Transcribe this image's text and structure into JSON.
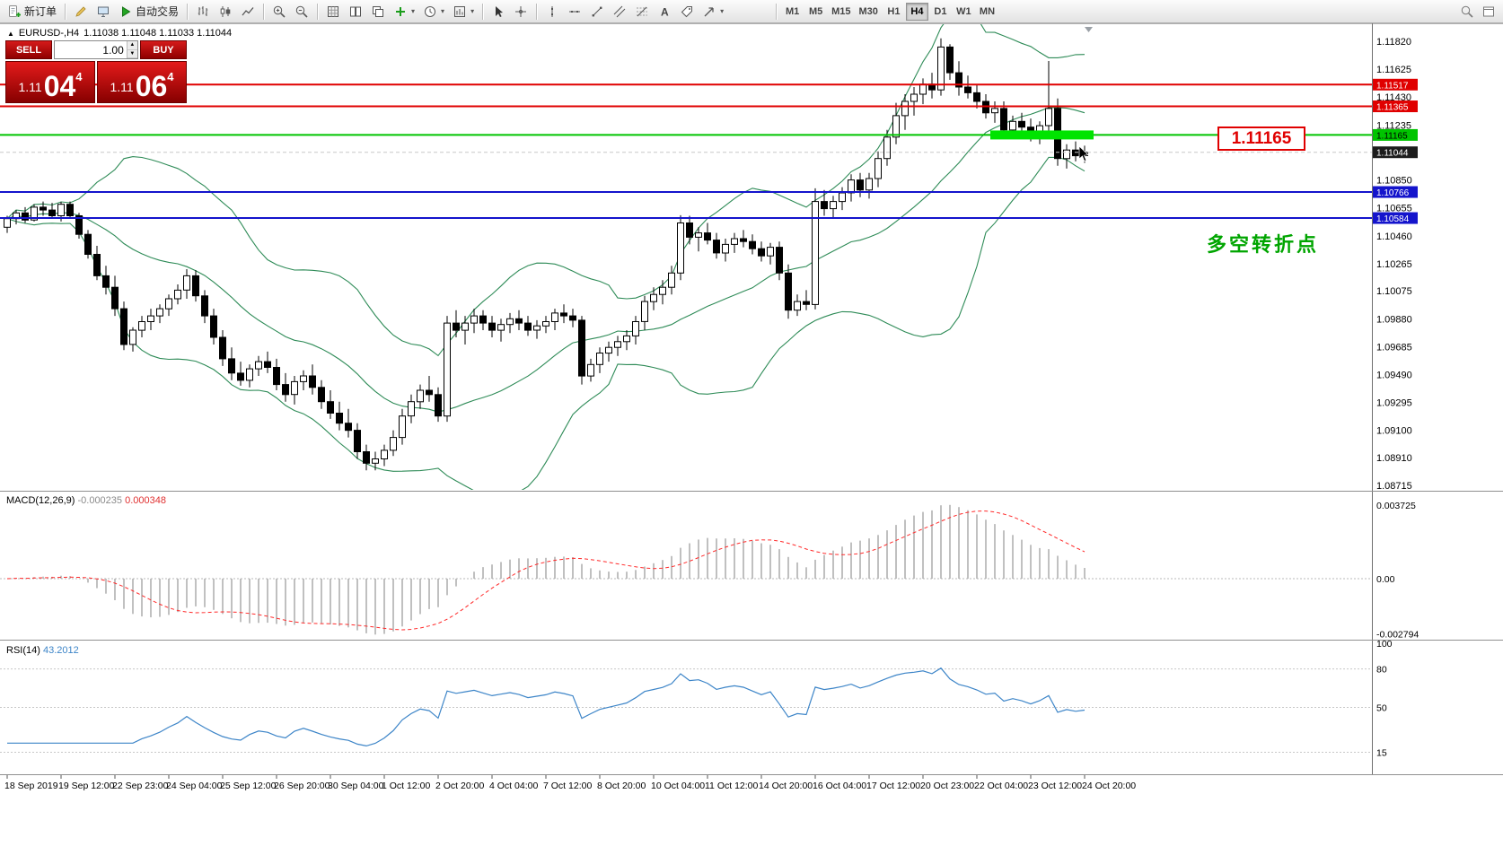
{
  "toolbar": {
    "new_order_label": "新订单",
    "autotrading_label": "自动交易",
    "timeframes": [
      "M1",
      "M5",
      "M15",
      "M30",
      "H1",
      "H4",
      "D1",
      "W1",
      "MN"
    ],
    "active_timeframe": "H4",
    "icons": [
      "new-order-icon",
      "metaeditor-icon",
      "terminal-icon",
      "autotrading-play-icon",
      "bar-chart-icon",
      "candlestick-chart-icon",
      "line-chart-icon",
      "zoom-in-icon",
      "zoom-out-icon",
      "grid-icon",
      "tile-windows-icon",
      "cascade-windows-icon",
      "add-indicator-icon",
      "periods-clock-icon",
      "chart-template-icon",
      "cursor-icon",
      "crosshair-icon",
      "vertical-line-icon",
      "horizontal-line-icon",
      "trendline-icon",
      "channel-icon",
      "fibonacci-icon",
      "text-icon",
      "text-label-icon",
      "arrow-tool-icon",
      "search-icon",
      "window-icon"
    ]
  },
  "chart": {
    "symbol_period": "EURUSD-,H4",
    "ohlc": "1.11038 1.11048 1.11033 1.11044",
    "one_click": {
      "sell_label": "SELL",
      "buy_label": "BUY",
      "volume": "1.00",
      "sell_small": "1.11",
      "sell_big": "04",
      "sell_sup": "4",
      "buy_small": "1.11",
      "buy_big": "06",
      "buy_sup": "4"
    },
    "annotation_price": "1.11165",
    "annotation_cn": "多空转折点",
    "hlines": [
      {
        "price": 1.11517,
        "label": "1.11517",
        "color": "#e00000",
        "text_color": "#ffffff"
      },
      {
        "price": 1.11365,
        "label": "1.11365",
        "color": "#e00000",
        "text_color": "#ffffff"
      },
      {
        "price": 1.11165,
        "label": "1.11165",
        "color": "#00c400",
        "text_color": "#000000"
      },
      {
        "price": 1.10766,
        "label": "1.10766",
        "color": "#1414cc",
        "text_color": "#ffffff"
      },
      {
        "price": 1.10584,
        "label": "1.10584",
        "color": "#1414cc",
        "text_color": "#ffffff"
      }
    ],
    "current_price": {
      "value": 1.11044,
      "label": "1.11044",
      "color": "#1c1c1c"
    },
    "zone": {
      "from": 110,
      "to": 120,
      "price": 1.11165,
      "color": "#00e400"
    },
    "axis_prices": [
      1.1182,
      1.11625,
      1.1143,
      1.11235,
      1.1104,
      1.1085,
      1.10655,
      1.1046,
      1.10265,
      1.10075,
      1.0988,
      1.09685,
      1.0949,
      1.09295,
      1.091,
      1.0891,
      1.08715
    ]
  },
  "macd": {
    "title": "MACD(12,26,9)",
    "value_main": "-0.000235",
    "value_signal": "0.000348",
    "axis": [
      {
        "v": 0.003725,
        "label": "0.003725"
      },
      {
        "v": 0,
        "label": "0.00"
      },
      {
        "v": -0.002794,
        "label": "-0.002794"
      }
    ],
    "params": [
      12,
      26,
      9
    ]
  },
  "rsi": {
    "title": "RSI(14)",
    "value": "43.2012",
    "period": 14,
    "levels": [
      80,
      50,
      15
    ],
    "axis": [
      100,
      80,
      50,
      15
    ]
  },
  "time_axis": [
    "18 Sep 2019",
    "19 Sep 12:00",
    "22 Sep 23:00",
    "24 Sep 04:00",
    "25 Sep 12:00",
    "26 Sep 20:00",
    "30 Sep 04:00",
    "1 Oct 12:00",
    "2 Oct 20:00",
    "4 Oct 04:00",
    "7 Oct 12:00",
    "8 Oct 20:00",
    "10 Oct 04:00",
    "11 Oct 12:00",
    "14 Oct 20:00",
    "16 Oct 04:00",
    "17 Oct 12:00",
    "20 Oct 23:00",
    "22 Oct 04:00",
    "23 Oct 12:00",
    "24 Oct 20:00"
  ],
  "chart_data": {
    "type": "candlestick",
    "symbol": "EURUSD-",
    "timeframe": "H4",
    "price_range": [
      1.08715,
      1.1182
    ],
    "current": {
      "open": 1.11038,
      "high": 1.11048,
      "low": 1.11033,
      "close": 1.11044
    },
    "overlays": [
      {
        "name": "Bollinger Bands",
        "period": 20,
        "deviation": 2,
        "color": "#2e8b57"
      }
    ],
    "candles": [
      [
        1.1052,
        1.106,
        1.1048,
        1.1058
      ],
      [
        1.1058,
        1.1064,
        1.1054,
        1.1062
      ],
      [
        1.1062,
        1.1066,
        1.1055,
        1.1057
      ],
      [
        1.1057,
        1.1068,
        1.1056,
        1.1066
      ],
      [
        1.1066,
        1.107,
        1.106,
        1.1064
      ],
      [
        1.1064,
        1.1069,
        1.1058,
        1.106
      ],
      [
        1.106,
        1.10697,
        1.1056,
        1.1068
      ],
      [
        1.1068,
        1.107,
        1.1058,
        1.106
      ],
      [
        1.106,
        1.1062,
        1.1044,
        1.1047
      ],
      [
        1.1047,
        1.105,
        1.103,
        1.1033
      ],
      [
        1.1033,
        1.1039,
        1.1015,
        1.1018
      ],
      [
        1.1018,
        1.1025,
        1.1005,
        1.101
      ],
      [
        1.101,
        1.1018,
        1.099,
        1.0995
      ],
      [
        1.0995,
        1.1,
        1.0966,
        1.097
      ],
      [
        1.097,
        1.0982,
        1.0965,
        1.098
      ],
      [
        1.098,
        1.099,
        1.0975,
        1.0986
      ],
      [
        1.0986,
        1.0995,
        1.098,
        1.099
      ],
      [
        1.099,
        1.0998,
        1.0985,
        1.0995
      ],
      [
        1.0995,
        1.1005,
        1.099,
        1.1002
      ],
      [
        1.1002,
        1.1012,
        1.0998,
        1.1008
      ],
      [
        1.1008,
        1.10227,
        1.1002,
        1.1018
      ],
      [
        1.1018,
        1.1022,
        1.1,
        1.1004
      ],
      [
        1.1004,
        1.1008,
        1.0985,
        1.099
      ],
      [
        1.099,
        1.0995,
        1.097,
        1.0975
      ],
      [
        1.0975,
        1.098,
        1.0955,
        1.096
      ],
      [
        1.096,
        1.0968,
        1.0945,
        1.095
      ],
      [
        1.095,
        1.0958,
        1.09412,
        1.0945
      ],
      [
        1.0945,
        1.0956,
        1.094,
        1.0953
      ],
      [
        1.0953,
        1.0962,
        1.0948,
        1.0958
      ],
      [
        1.0958,
        1.0965,
        1.095,
        1.0954
      ],
      [
        1.0954,
        1.096,
        1.0938,
        1.0942
      ],
      [
        1.0942,
        1.095,
        1.093,
        1.0935
      ],
      [
        1.0935,
        1.0948,
        1.0928,
        1.0944
      ],
      [
        1.0944,
        1.0952,
        1.0938,
        1.0948
      ],
      [
        1.0948,
        1.0956,
        1.0935,
        1.094
      ],
      [
        1.094,
        1.0945,
        1.0925,
        1.093
      ],
      [
        1.093,
        1.0938,
        1.0918,
        1.0922
      ],
      [
        1.0922,
        1.093,
        1.091,
        1.0915
      ],
      [
        1.0915,
        1.0925,
        1.0905,
        1.091
      ],
      [
        1.091,
        1.0915,
        1.089,
        1.0895
      ],
      [
        1.0895,
        1.09,
        1.0882,
        1.0887
      ],
      [
        1.0887,
        1.0895,
        1.0882,
        1.089
      ],
      [
        1.089,
        1.09,
        1.0885,
        1.0896
      ],
      [
        1.0896,
        1.091,
        1.0892,
        1.0905
      ],
      [
        1.0905,
        1.0925,
        1.09,
        1.092
      ],
      [
        1.092,
        1.0935,
        1.0915,
        1.093
      ],
      [
        1.093,
        1.0942,
        1.0925,
        1.0938
      ],
      [
        1.0938,
        1.0948,
        1.093,
        1.0935
      ],
      [
        1.0935,
        1.094,
        1.0916,
        1.092
      ],
      [
        1.092,
        1.099,
        1.0916,
        1.0985
      ],
      [
        1.0985,
        1.0994,
        1.0975,
        1.098
      ],
      [
        1.098,
        1.099,
        1.097,
        1.0985
      ],
      [
        1.0985,
        1.0995,
        1.0978,
        1.099
      ],
      [
        1.099,
        1.0994,
        1.098,
        1.0985
      ],
      [
        1.0985,
        1.099,
        1.0975,
        1.098
      ],
      [
        1.098,
        1.0988,
        1.0972,
        1.0984
      ],
      [
        1.0984,
        1.0992,
        1.0978,
        1.0988
      ],
      [
        1.0988,
        1.0994,
        1.098,
        1.0985
      ],
      [
        1.0985,
        1.099,
        1.0976,
        1.098
      ],
      [
        1.098,
        1.0987,
        1.0974,
        1.0983
      ],
      [
        1.0983,
        1.099,
        1.0978,
        1.0986
      ],
      [
        1.0986,
        1.0995,
        1.098,
        1.0992
      ],
      [
        1.0992,
        1.0998,
        1.0985,
        1.099
      ],
      [
        1.099,
        1.0995,
        1.0982,
        1.0987
      ],
      [
        1.0987,
        1.099,
        1.0942,
        1.0948
      ],
      [
        1.0948,
        1.096,
        1.0944,
        1.0956
      ],
      [
        1.0956,
        1.0968,
        1.095,
        1.0964
      ],
      [
        1.0964,
        1.0972,
        1.0958,
        1.0968
      ],
      [
        1.0968,
        1.0976,
        1.0962,
        1.0972
      ],
      [
        1.0972,
        1.098,
        1.0966,
        1.0976
      ],
      [
        1.0976,
        1.099,
        1.097,
        1.0986
      ],
      [
        1.0986,
        1.1004,
        1.098,
        1.1
      ],
      [
        1.1,
        1.101,
        1.0994,
        1.1005
      ],
      [
        1.1005,
        1.1015,
        1.0998,
        1.101
      ],
      [
        1.101,
        1.1025,
        1.1005,
        1.102
      ],
      [
        1.102,
        1.10604,
        1.1015,
        1.1055
      ],
      [
        1.1055,
        1.106,
        1.104,
        1.1045
      ],
      [
        1.1045,
        1.1052,
        1.1035,
        1.1048
      ],
      [
        1.1048,
        1.1055,
        1.104,
        1.1043
      ],
      [
        1.1043,
        1.1048,
        1.103,
        1.1034
      ],
      [
        1.1034,
        1.1044,
        1.1028,
        1.104
      ],
      [
        1.104,
        1.1048,
        1.1034,
        1.1044
      ],
      [
        1.1044,
        1.105,
        1.1038,
        1.1042
      ],
      [
        1.1042,
        1.1047,
        1.1033,
        1.1037
      ],
      [
        1.1037,
        1.1042,
        1.1028,
        1.1032
      ],
      [
        1.1032,
        1.1041,
        1.1026,
        1.1038
      ],
      [
        1.1038,
        1.1042,
        1.1015,
        1.102
      ],
      [
        1.102,
        1.1026,
        1.0988,
        1.0994
      ],
      [
        1.0994,
        1.1005,
        1.099,
        1.1
      ],
      [
        1.1,
        1.1008,
        1.0994,
        1.0998
      ],
      [
        1.0998,
        1.10792,
        1.09945,
        1.107
      ],
      [
        1.107,
        1.1078,
        1.106,
        1.1065
      ],
      [
        1.1065,
        1.1074,
        1.1058,
        1.107
      ],
      [
        1.107,
        1.108,
        1.1064,
        1.1076
      ],
      [
        1.1076,
        1.1089,
        1.107,
        1.1085
      ],
      [
        1.1085,
        1.109,
        1.1073,
        1.1078
      ],
      [
        1.1078,
        1.109,
        1.1072,
        1.1086
      ],
      [
        1.1086,
        1.1105,
        1.108,
        1.11
      ],
      [
        1.11,
        1.112,
        1.1095,
        1.1115
      ],
      [
        1.1115,
        1.1139,
        1.111,
        1.113
      ],
      [
        1.113,
        1.1145,
        1.112,
        1.114
      ],
      [
        1.114,
        1.115,
        1.113,
        1.1145
      ],
      [
        1.1145,
        1.1156,
        1.1138,
        1.1152
      ],
      [
        1.1152,
        1.116,
        1.1142,
        1.1148
      ],
      [
        1.1148,
        1.1184,
        1.1144,
        1.1178
      ],
      [
        1.1178,
        1.118,
        1.1155,
        1.116
      ],
      [
        1.116,
        1.1168,
        1.1144,
        1.115
      ],
      [
        1.115,
        1.1158,
        1.1142,
        1.1146
      ],
      [
        1.1146,
        1.1152,
        1.1135,
        1.114
      ],
      [
        1.114,
        1.1145,
        1.1128,
        1.1132
      ],
      [
        1.1132,
        1.114,
        1.1125,
        1.1135
      ],
      [
        1.1135,
        1.114,
        1.1115,
        1.112
      ],
      [
        1.112,
        1.113,
        1.1114,
        1.1126
      ],
      [
        1.1126,
        1.1132,
        1.1118,
        1.1122
      ],
      [
        1.1122,
        1.1128,
        1.1112,
        1.1116
      ],
      [
        1.1116,
        1.1126,
        1.111,
        1.1123
      ],
      [
        1.1123,
        1.11682,
        1.1118,
        1.1135
      ],
      [
        1.1135,
        1.1142,
        1.1095,
        1.11
      ],
      [
        1.11,
        1.111,
        1.1093,
        1.1106
      ],
      [
        1.1106,
        1.1112,
        1.1098,
        1.1102
      ],
      [
        1.1102,
        1.1109,
        1.1097,
        1.11044
      ]
    ]
  }
}
